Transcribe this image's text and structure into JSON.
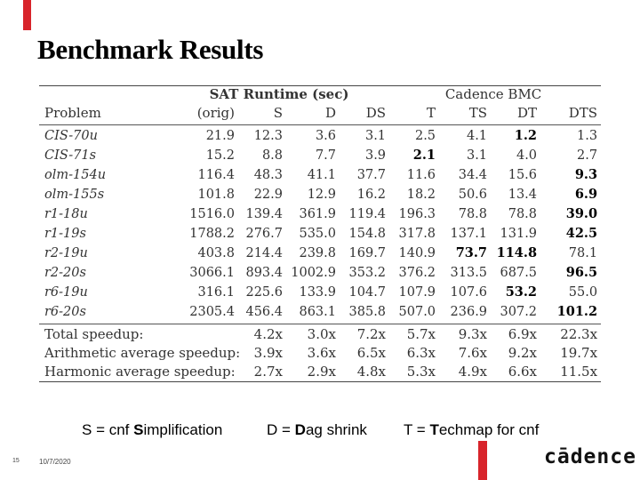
{
  "title": "Benchmark Results",
  "table": {
    "group_headers": {
      "sat": "SAT Runtime (sec)",
      "bmc": "Cadence BMC"
    },
    "columns": [
      "Problem",
      "(orig)",
      "S",
      "D",
      "DS",
      "T",
      "TS",
      "DT",
      "DTS"
    ],
    "rows": [
      [
        "CIS-70u",
        "21.9",
        "12.3",
        "3.6",
        "3.1",
        "2.5",
        "4.1",
        "1.2",
        "1.3"
      ],
      [
        "CIS-71s",
        "15.2",
        "8.8",
        "7.7",
        "3.9",
        "2.1",
        "3.1",
        "4.0",
        "2.7"
      ],
      [
        "olm-154u",
        "116.4",
        "48.3",
        "41.1",
        "37.7",
        "11.6",
        "34.4",
        "15.6",
        "9.3"
      ],
      [
        "olm-155s",
        "101.8",
        "22.9",
        "12.9",
        "16.2",
        "18.2",
        "50.6",
        "13.4",
        "6.9"
      ],
      [
        "r1-18u",
        "1516.0",
        "139.4",
        "361.9",
        "119.4",
        "196.3",
        "78.8",
        "78.8",
        "39.0"
      ],
      [
        "r1-19s",
        "1788.2",
        "276.7",
        "535.0",
        "154.8",
        "317.8",
        "137.1",
        "131.9",
        "42.5"
      ],
      [
        "r2-19u",
        "403.8",
        "214.4",
        "239.8",
        "169.7",
        "140.9",
        "73.7",
        "114.8",
        "78.1"
      ],
      [
        "r2-20s",
        "3066.1",
        "893.4",
        "1002.9",
        "353.2",
        "376.2",
        "313.5",
        "687.5",
        "96.5"
      ],
      [
        "r6-19u",
        "316.1",
        "225.6",
        "133.9",
        "104.7",
        "107.9",
        "107.6",
        "53.2",
        "55.0"
      ],
      [
        "r6-20s",
        "2305.4",
        "456.4",
        "863.1",
        "385.8",
        "507.0",
        "236.9",
        "307.2",
        "101.2"
      ]
    ],
    "bold_cells": [
      [
        0,
        7
      ],
      [
        1,
        5
      ],
      [
        2,
        8
      ],
      [
        3,
        8
      ],
      [
        4,
        8
      ],
      [
        5,
        8
      ],
      [
        6,
        6
      ],
      [
        6,
        7
      ],
      [
        7,
        8
      ],
      [
        8,
        7
      ],
      [
        9,
        8
      ]
    ],
    "summary": [
      [
        "Total speedup:",
        "4.2x",
        "3.0x",
        "7.2x",
        "5.7x",
        "9.3x",
        "6.9x",
        "22.3x"
      ],
      [
        "Arithmetic average speedup:",
        "3.9x",
        "3.6x",
        "6.5x",
        "6.3x",
        "7.6x",
        "9.2x",
        "19.7x"
      ],
      [
        "Harmonic average speedup:",
        "2.7x",
        "2.9x",
        "4.8x",
        "5.3x",
        "4.9x",
        "6.6x",
        "11.5x"
      ]
    ]
  },
  "legend": [
    {
      "letter": "S",
      "pre": " = cnf ",
      "bold": "S",
      "post": "implification"
    },
    {
      "letter": "D",
      "pre": " = ",
      "bold": "D",
      "post": "ag shrink"
    },
    {
      "letter": "T",
      "pre": " = ",
      "bold": "T",
      "post": "echmap for cnf"
    }
  ],
  "footer": {
    "slide_number": "15",
    "date": "10/7/2020"
  },
  "logo_text": "cādence",
  "colors": {
    "accent_red": "#d8242b",
    "table_text": "#333333"
  }
}
